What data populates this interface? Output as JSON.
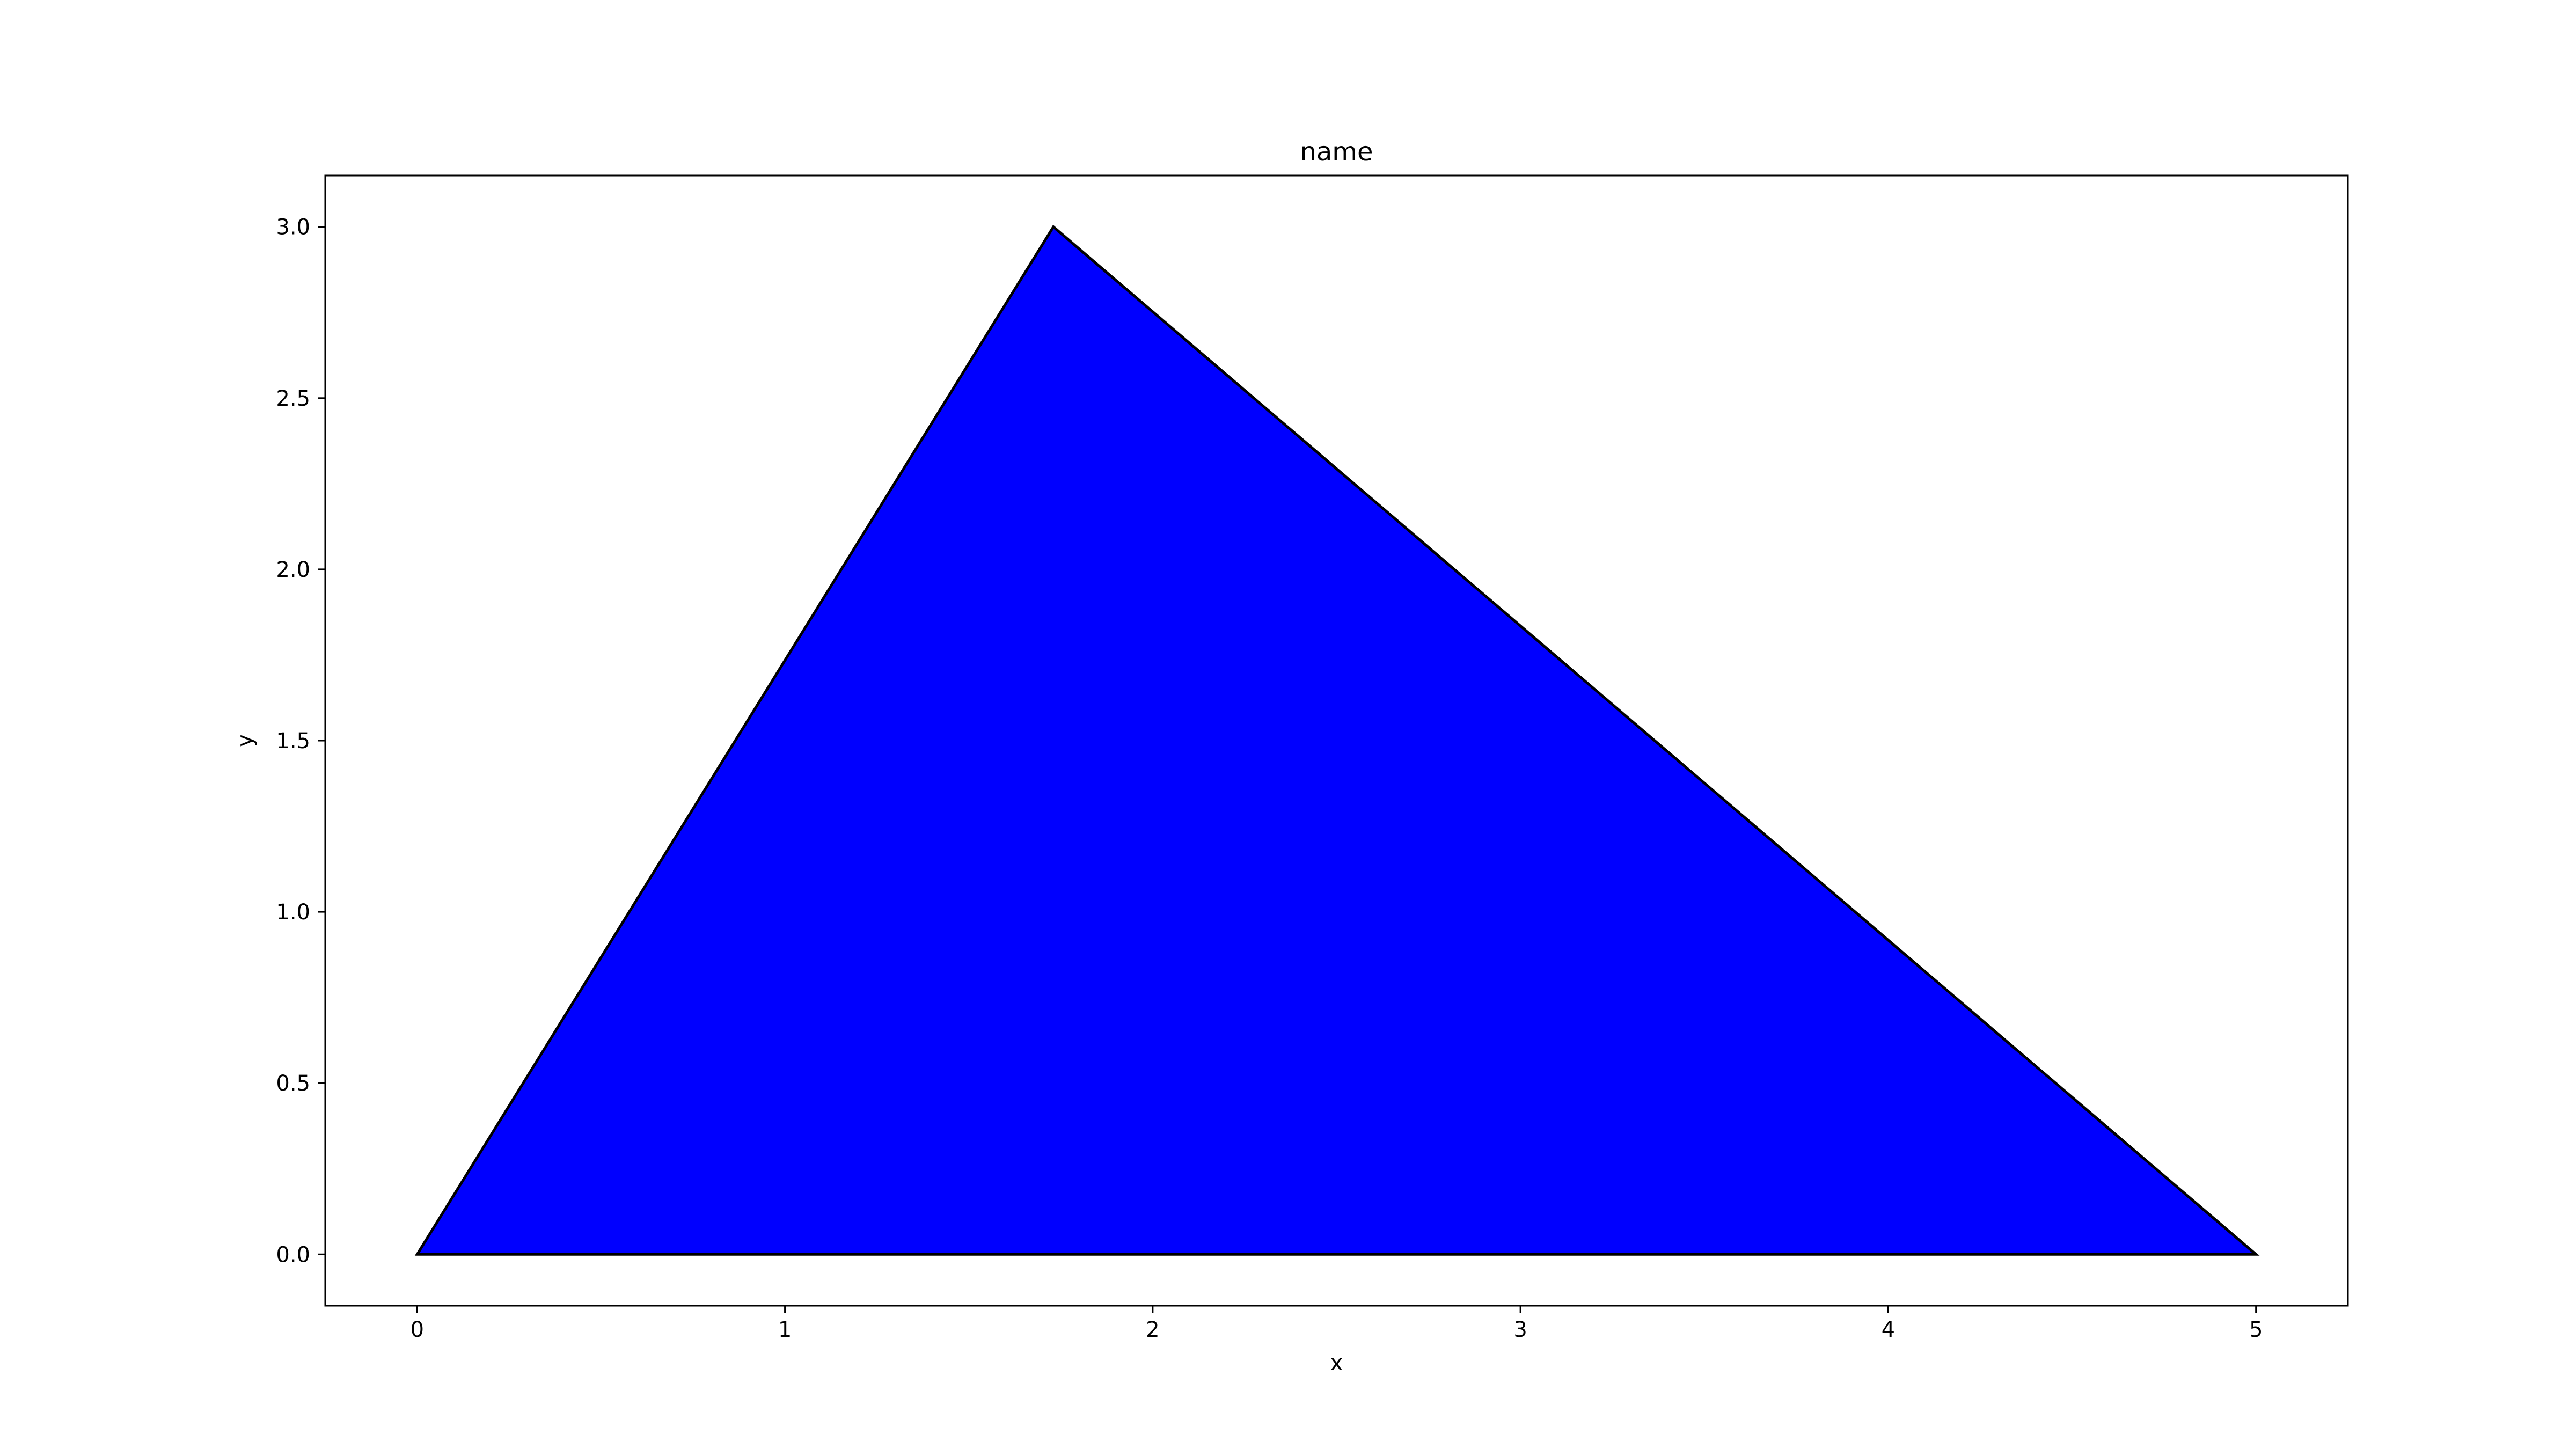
{
  "chart_data": {
    "type": "area",
    "title": "name",
    "xlabel": "x",
    "ylabel": "y",
    "xlim": [
      -0.25,
      5.25
    ],
    "ylim": [
      -0.15,
      3.15
    ],
    "x_ticks": [
      0,
      1,
      2,
      3,
      4,
      5
    ],
    "x_tick_labels": [
      "0",
      "1",
      "2",
      "3",
      "4",
      "5"
    ],
    "y_ticks": [
      0.0,
      0.5,
      1.0,
      1.5,
      2.0,
      2.5,
      3.0
    ],
    "y_tick_labels": [
      "0.0",
      "0.5",
      "1.0",
      "1.5",
      "2.0",
      "2.5",
      "3.0"
    ],
    "grid": false,
    "series": [
      {
        "shape": "polygon",
        "points": [
          {
            "x": 0,
            "y": 0
          },
          {
            "x": 1.73,
            "y": 3.0
          },
          {
            "x": 5,
            "y": 0
          }
        ],
        "fill_color": "#0000ff",
        "edge_color": "#000000"
      }
    ]
  }
}
